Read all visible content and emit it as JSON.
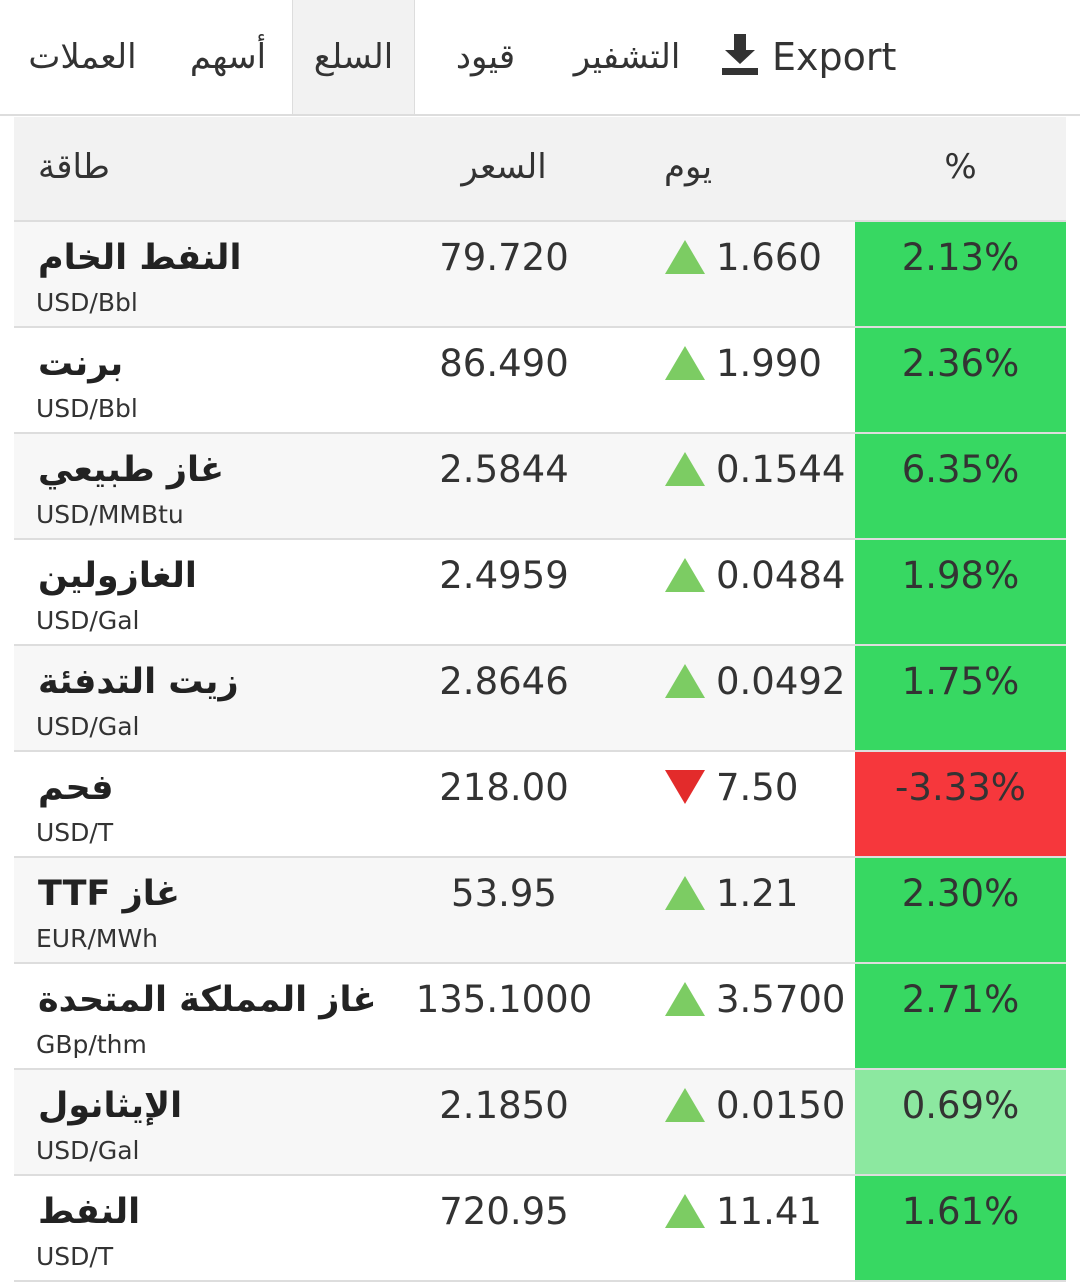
{
  "tabs": [
    {
      "label": "العملات",
      "active": false
    },
    {
      "label": "أسهم",
      "active": false
    },
    {
      "label": "السلع",
      "active": true
    },
    {
      "label": "قيود",
      "active": false
    },
    {
      "label": "التشفير",
      "active": false
    }
  ],
  "export": "Export",
  "table": {
    "header": [
      "طاقة",
      "السعر",
      "يوم",
      "%"
    ],
    "rows": [
      {
        "name": "النفط الخام",
        "unit": "USD/Bbl",
        "price": "79.720",
        "change": "1.660",
        "percent": "2.13%",
        "direction": "up",
        "color": "#37d862"
      },
      {
        "name": "برنت",
        "unit": "USD/Bbl",
        "price": "86.490",
        "change": "1.990",
        "percent": "2.36%",
        "direction": "up",
        "color": "#37d862"
      },
      {
        "name": "غاز طبيعي",
        "unit": "USD/MMBtu",
        "price": "2.5844",
        "change": "0.1544",
        "percent": "6.35%",
        "direction": "up",
        "color": "#37d862"
      },
      {
        "name": "الغازولين",
        "unit": "USD/Gal",
        "price": "2.4959",
        "change": "0.0484",
        "percent": "1.98%",
        "direction": "up",
        "color": "#37d862"
      },
      {
        "name": "زيت التدفئة",
        "unit": "USD/Gal",
        "price": "2.8646",
        "change": "0.0492",
        "percent": "1.75%",
        "direction": "up",
        "color": "#37d862"
      },
      {
        "name": "فحم",
        "unit": "USD/T",
        "price": "218.00",
        "change": "7.50",
        "percent": "-3.33%",
        "direction": "down",
        "color": "#f6373c"
      },
      {
        "name": "غاز TTF",
        "unit": "EUR/MWh",
        "price": "53.95",
        "change": "1.21",
        "percent": "2.30%",
        "direction": "up",
        "color": "#37d862"
      },
      {
        "name": "غاز المملكة المتحدة",
        "unit": "GBp/thm",
        "price": "135.1000",
        "change": "3.5700",
        "percent": "2.71%",
        "direction": "up",
        "color": "#37d862"
      },
      {
        "name": "الإيثانول",
        "unit": "USD/Gal",
        "price": "2.1850",
        "change": "0.0150",
        "percent": "0.69%",
        "direction": "up",
        "color": "#8ce8a0"
      },
      {
        "name": "النفط",
        "unit": "USD/T",
        "price": "720.95",
        "change": "11.41",
        "percent": "1.61%",
        "direction": "up",
        "color": "#37d862"
      }
    ]
  }
}
